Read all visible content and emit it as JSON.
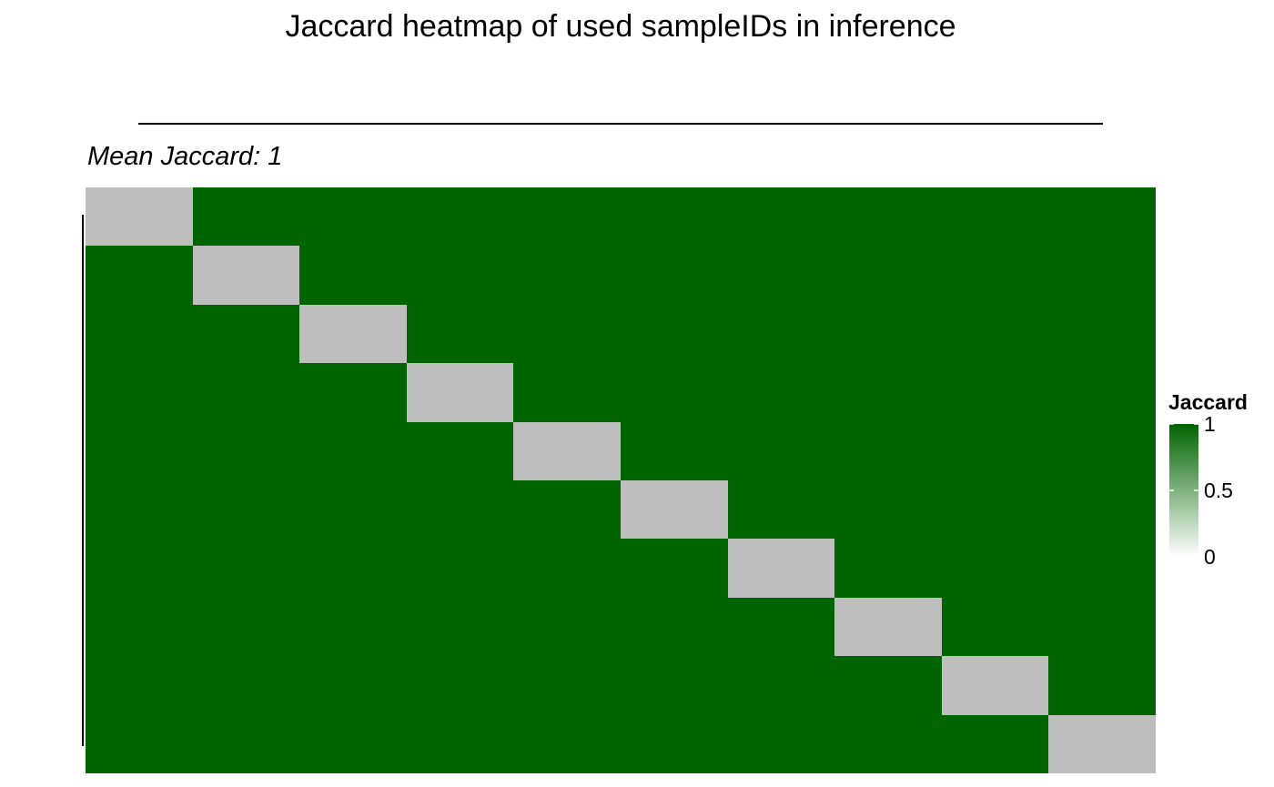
{
  "chart_data": {
    "type": "heatmap",
    "title": "Jaccard heatmap of used sampleIDs in inference",
    "subtitle": "Mean Jaccard: 1",
    "rows": 10,
    "cols": 10,
    "values": [
      [
        null,
        1,
        1,
        1,
        1,
        1,
        1,
        1,
        1,
        1
      ],
      [
        1,
        null,
        1,
        1,
        1,
        1,
        1,
        1,
        1,
        1
      ],
      [
        1,
        1,
        null,
        1,
        1,
        1,
        1,
        1,
        1,
        1
      ],
      [
        1,
        1,
        1,
        null,
        1,
        1,
        1,
        1,
        1,
        1
      ],
      [
        1,
        1,
        1,
        1,
        null,
        1,
        1,
        1,
        1,
        1
      ],
      [
        1,
        1,
        1,
        1,
        1,
        null,
        1,
        1,
        1,
        1
      ],
      [
        1,
        1,
        1,
        1,
        1,
        1,
        null,
        1,
        1,
        1
      ],
      [
        1,
        1,
        1,
        1,
        1,
        1,
        1,
        null,
        1,
        1
      ],
      [
        1,
        1,
        1,
        1,
        1,
        1,
        1,
        1,
        null,
        1
      ],
      [
        1,
        1,
        1,
        1,
        1,
        1,
        1,
        1,
        1,
        null
      ]
    ],
    "na_color": "#bebebe",
    "colorscale": {
      "low": "#ffffff",
      "high": "#006400",
      "min": 0,
      "max": 1
    },
    "legend": {
      "title": "Jaccard",
      "ticks": [
        {
          "value": 1,
          "label": "1"
        },
        {
          "value": 0.5,
          "label": "0.5"
        },
        {
          "value": 0,
          "label": "0"
        }
      ],
      "position": "right"
    },
    "dendrograms": {
      "top": true,
      "left": true
    }
  }
}
